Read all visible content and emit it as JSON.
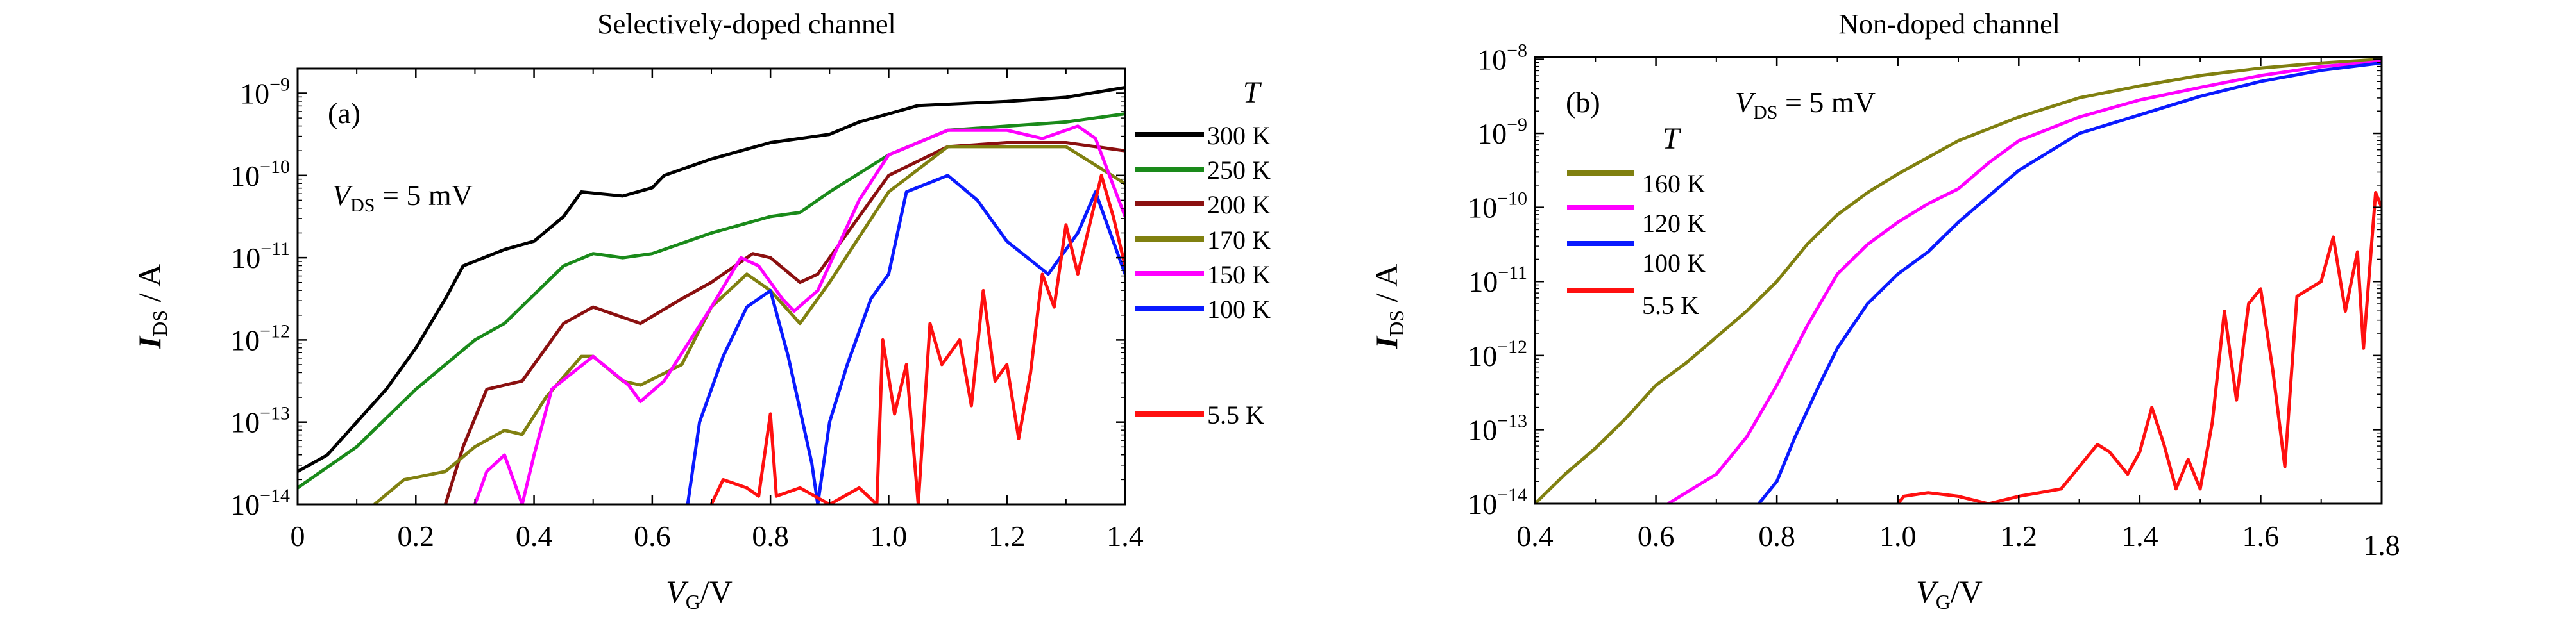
{
  "chart_data": [
    {
      "type": "line",
      "panel_label": "(a)",
      "title": "Selectively-doped channel",
      "xlabel": "V_G/V",
      "xlabel_main": "V",
      "xlabel_sub": "G",
      "xlabel_unit": "/V",
      "ylabel_main": "I",
      "ylabel_sub": "DS",
      "ylabel_unit": " / A",
      "yscale": "log",
      "xlim": [
        0,
        1.4
      ],
      "ylim_log10": [
        -14,
        -8.7
      ],
      "xticks": [
        "0",
        "0.2",
        "0.4",
        "0.6",
        "0.8",
        "1.0",
        "1.2",
        "1.4"
      ],
      "xtick_values": [
        0,
        0.2,
        0.4,
        0.6,
        0.8,
        1.0,
        1.2,
        1.4
      ],
      "yticks_exp": [
        "−9",
        "−10",
        "−11",
        "−12",
        "−13",
        "−14"
      ],
      "ytick_values_log10": [
        -9,
        -10,
        -11,
        -12,
        -13,
        -14
      ],
      "annotation": {
        "main": "V",
        "sub": "DS",
        "rest": " = 5 mV"
      },
      "legend_title": "T",
      "legend_placement": "outside-right",
      "series": [
        {
          "name": "300 K",
          "color": "#000000",
          "x": [
            0,
            0.05,
            0.1,
            0.15,
            0.2,
            0.25,
            0.28,
            0.35,
            0.4,
            0.45,
            0.48,
            0.55,
            0.6,
            0.62,
            0.7,
            0.8,
            0.9,
            0.95,
            1.05,
            1.2,
            1.3,
            1.4
          ],
          "log10_I": [
            -13.6,
            -13.4,
            -13.0,
            -12.6,
            -12.1,
            -11.5,
            -11.1,
            -10.9,
            -10.8,
            -10.5,
            -10.2,
            -10.25,
            -10.15,
            -10.0,
            -9.8,
            -9.6,
            -9.5,
            -9.35,
            -9.15,
            -9.1,
            -9.05,
            -8.93
          ]
        },
        {
          "name": "250 K",
          "color": "#1a8a1a",
          "x": [
            0,
            0.1,
            0.2,
            0.3,
            0.35,
            0.45,
            0.5,
            0.55,
            0.6,
            0.7,
            0.8,
            0.85,
            0.9,
            1.0,
            1.1,
            1.2,
            1.3,
            1.4
          ],
          "log10_I": [
            -13.8,
            -13.3,
            -12.6,
            -12.0,
            -11.8,
            -11.1,
            -10.95,
            -11.0,
            -10.95,
            -10.7,
            -10.5,
            -10.45,
            -10.2,
            -9.75,
            -9.45,
            -9.4,
            -9.35,
            -9.25
          ]
        },
        {
          "name": "200 K",
          "color": "#8b1010",
          "x": [
            0.25,
            0.28,
            0.32,
            0.38,
            0.45,
            0.5,
            0.58,
            0.65,
            0.7,
            0.77,
            0.8,
            0.85,
            0.88,
            0.95,
            1.0,
            1.1,
            1.2,
            1.3,
            1.4
          ],
          "log10_I": [
            -14,
            -13.3,
            -12.6,
            -12.5,
            -11.8,
            -11.6,
            -11.8,
            -11.5,
            -11.3,
            -10.95,
            -11.0,
            -11.3,
            -11.2,
            -10.5,
            -10.0,
            -9.65,
            -9.6,
            -9.6,
            -9.7
          ]
        },
        {
          "name": "170 K",
          "color": "#808010",
          "x": [
            0.13,
            0.18,
            0.25,
            0.3,
            0.35,
            0.38,
            0.42,
            0.48,
            0.5,
            0.55,
            0.58,
            0.65,
            0.7,
            0.76,
            0.8,
            0.85,
            0.9,
            1.0,
            1.1,
            1.2,
            1.3,
            1.4
          ],
          "log10_I": [
            -14,
            -13.7,
            -13.6,
            -13.3,
            -13.1,
            -13.15,
            -12.7,
            -12.2,
            -12.2,
            -12.5,
            -12.55,
            -12.3,
            -11.6,
            -11.2,
            -11.4,
            -11.8,
            -11.3,
            -10.2,
            -9.65,
            -9.65,
            -9.65,
            -10.1
          ]
        },
        {
          "name": "150 K",
          "color": "#ff00ff",
          "x": [
            0.3,
            0.32,
            0.35,
            0.38,
            0.4,
            0.43,
            0.5,
            0.56,
            0.58,
            0.62,
            0.7,
            0.75,
            0.78,
            0.82,
            0.84,
            0.88,
            0.95,
            1.0,
            1.1,
            1.2,
            1.26,
            1.32,
            1.35,
            1.4
          ],
          "log10_I": [
            -14,
            -13.6,
            -13.4,
            -14,
            -13.4,
            -12.6,
            -12.2,
            -12.55,
            -12.75,
            -12.5,
            -11.6,
            -11.0,
            -11.1,
            -11.5,
            -11.65,
            -11.4,
            -10.3,
            -9.75,
            -9.45,
            -9.45,
            -9.55,
            -9.4,
            -9.55,
            -10.5
          ]
        },
        {
          "name": "100 K",
          "color": "#0a1aff",
          "x": [
            0.66,
            0.68,
            0.72,
            0.76,
            0.8,
            0.83,
            0.87,
            0.88,
            0.9,
            0.93,
            0.97,
            1.0,
            1.03,
            1.1,
            1.15,
            1.2,
            1.27,
            1.32,
            1.35,
            1.4
          ],
          "log10_I": [
            -14,
            -13.0,
            -12.2,
            -11.6,
            -11.4,
            -12.2,
            -13.5,
            -14,
            -13.0,
            -12.3,
            -11.5,
            -11.2,
            -10.2,
            -10.0,
            -10.3,
            -10.8,
            -11.2,
            -10.7,
            -10.2,
            -11.2
          ]
        },
        {
          "name": "5.5 K",
          "color": "#ff1010",
          "x": [
            0.7,
            0.72,
            0.76,
            0.78,
            0.8,
            0.81,
            0.85,
            0.9,
            0.95,
            0.98,
            0.99,
            1.01,
            1.03,
            1.05,
            1.07,
            1.09,
            1.12,
            1.14,
            1.16,
            1.18,
            1.2,
            1.22,
            1.24,
            1.26,
            1.28,
            1.3,
            1.32,
            1.34,
            1.36,
            1.38,
            1.4
          ],
          "log10_I": [
            -14,
            -13.7,
            -13.8,
            -13.9,
            -12.9,
            -13.9,
            -13.8,
            -14,
            -13.8,
            -14,
            -12.0,
            -12.9,
            -12.3,
            -14,
            -11.8,
            -12.3,
            -12.0,
            -12.8,
            -11.4,
            -12.5,
            -12.3,
            -13.2,
            -12.4,
            -11.2,
            -11.6,
            -10.6,
            -11.2,
            -10.6,
            -10.0,
            -10.5,
            -11.1
          ]
        }
      ]
    },
    {
      "type": "line",
      "panel_label": "(b)",
      "title": "Non-doped channel",
      "xlabel": "V_G/V",
      "xlabel_main": "V",
      "xlabel_sub": "G",
      "xlabel_unit": "/V",
      "ylabel_main": "I",
      "ylabel_sub": "DS",
      "ylabel_unit": " / A",
      "yscale": "log",
      "xlim": [
        0.4,
        1.8
      ],
      "ylim_log10": [
        -14,
        -7.97
      ],
      "xticks": [
        "0.4",
        "0.6",
        "0.8",
        "1.0",
        "1.2",
        "1.4",
        "1.6",
        "1.8"
      ],
      "xtick_values": [
        0.4,
        0.6,
        0.8,
        1.0,
        1.2,
        1.4,
        1.6,
        1.8
      ],
      "yticks_exp": [
        "−8",
        "−9",
        "−10",
        "−11",
        "−12",
        "−13",
        "−14"
      ],
      "ytick_values_log10": [
        -8,
        -9,
        -10,
        -11,
        -12,
        -13,
        -14
      ],
      "annotation": {
        "main": "V",
        "sub": "DS",
        "rest": " = 5 mV"
      },
      "legend_title": "T",
      "legend_placement": "top-left",
      "series": [
        {
          "name": "160 K",
          "color": "#808010",
          "x": [
            0.4,
            0.45,
            0.5,
            0.55,
            0.6,
            0.65,
            0.7,
            0.75,
            0.8,
            0.85,
            0.9,
            0.95,
            1.0,
            1.1,
            1.2,
            1.3,
            1.4,
            1.5,
            1.6,
            1.7,
            1.8
          ],
          "log10_I": [
            -14,
            -13.6,
            -13.25,
            -12.85,
            -12.4,
            -12.1,
            -11.75,
            -11.4,
            -11.0,
            -10.5,
            -10.1,
            -9.8,
            -9.55,
            -9.1,
            -8.78,
            -8.52,
            -8.36,
            -8.22,
            -8.12,
            -8.05,
            -8.0
          ]
        },
        {
          "name": "120 K",
          "color": "#ff00ff",
          "x": [
            0.62,
            0.7,
            0.75,
            0.8,
            0.85,
            0.9,
            0.95,
            1.0,
            1.05,
            1.1,
            1.15,
            1.2,
            1.3,
            1.4,
            1.5,
            1.6,
            1.7,
            1.8
          ],
          "log10_I": [
            -14,
            -13.6,
            -13.1,
            -12.4,
            -11.6,
            -10.9,
            -10.5,
            -10.2,
            -9.95,
            -9.75,
            -9.4,
            -9.1,
            -8.78,
            -8.55,
            -8.38,
            -8.22,
            -8.1,
            -8.03
          ]
        },
        {
          "name": "100 K",
          "color": "#0a1aff",
          "x": [
            0.77,
            0.8,
            0.83,
            0.87,
            0.9,
            0.95,
            1.0,
            1.05,
            1.1,
            1.15,
            1.2,
            1.25,
            1.3,
            1.4,
            1.5,
            1.6,
            1.7,
            1.8
          ],
          "log10_I": [
            -14,
            -13.7,
            -13.1,
            -12.4,
            -11.9,
            -11.3,
            -10.9,
            -10.6,
            -10.2,
            -9.85,
            -9.5,
            -9.25,
            -9.0,
            -8.75,
            -8.5,
            -8.3,
            -8.15,
            -8.05
          ]
        },
        {
          "name": "5.5 K",
          "color": "#ff1010",
          "x": [
            1.0,
            1.01,
            1.05,
            1.1,
            1.15,
            1.2,
            1.27,
            1.3,
            1.33,
            1.35,
            1.38,
            1.4,
            1.42,
            1.44,
            1.46,
            1.48,
            1.5,
            1.52,
            1.54,
            1.56,
            1.58,
            1.6,
            1.62,
            1.64,
            1.66,
            1.7,
            1.72,
            1.74,
            1.76,
            1.77,
            1.79,
            1.8
          ],
          "log10_I": [
            -14,
            -13.9,
            -13.85,
            -13.9,
            -14,
            -13.9,
            -13.8,
            -13.5,
            -13.2,
            -13.3,
            -13.6,
            -13.3,
            -12.7,
            -13.2,
            -13.8,
            -13.4,
            -13.8,
            -12.9,
            -11.4,
            -12.6,
            -11.3,
            -11.1,
            -12.2,
            -13.5,
            -11.2,
            -11.0,
            -10.4,
            -11.4,
            -10.6,
            -11.9,
            -9.8,
            -10.0
          ]
        }
      ]
    }
  ]
}
